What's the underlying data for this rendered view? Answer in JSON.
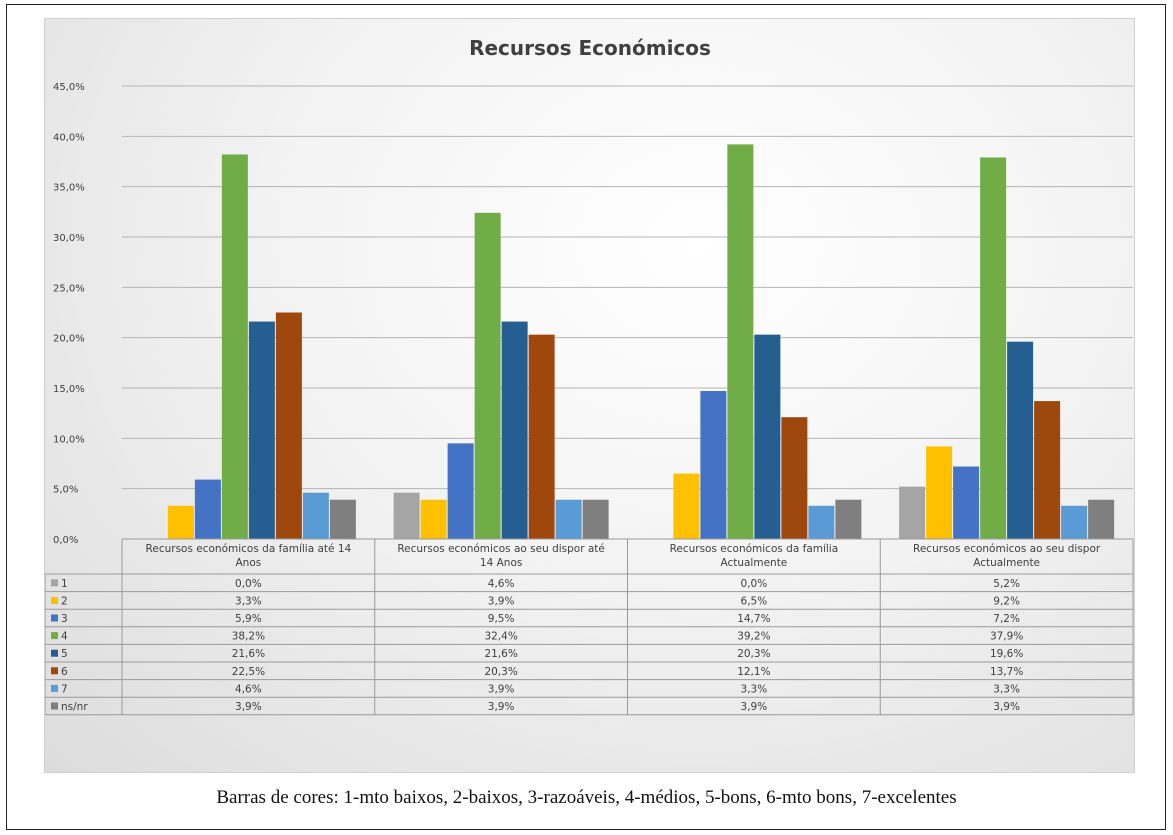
{
  "caption": "Barras de cores: 1-mto baixos, 2-baixos, 3-razoáveis, 4-médios, 5-bons, 6-mto bons, 7-excelentes",
  "chart_data": {
    "type": "bar",
    "title": "Recursos Económicos",
    "ylim": [
      0,
      45
    ],
    "yticks": [
      "0,0%",
      "5,0%",
      "10,0%",
      "15,0%",
      "20,0%",
      "25,0%",
      "30,0%",
      "35,0%",
      "40,0%",
      "45,0%"
    ],
    "grid": true,
    "legend": "data-table",
    "categories": [
      [
        "Recursos económicos da família até 14",
        "Anos"
      ],
      [
        "Recursos económicos ao seu dispor até",
        "14 Anos"
      ],
      [
        "Recursos económicos da família",
        "Actualmente"
      ],
      [
        "Recursos económicos ao seu dispor",
        "Actualmente"
      ]
    ],
    "series": [
      {
        "name": "1",
        "color": "#a5a5a5",
        "values": [
          0.0,
          4.6,
          0.0,
          5.2
        ],
        "labels": [
          "0,0%",
          "4,6%",
          "0,0%",
          "5,2%"
        ]
      },
      {
        "name": "2",
        "color": "#ffc000",
        "values": [
          3.3,
          3.9,
          6.5,
          9.2
        ],
        "labels": [
          "3,3%",
          "3,9%",
          "6,5%",
          "9,2%"
        ]
      },
      {
        "name": "3",
        "color": "#4472c4",
        "values": [
          5.9,
          9.5,
          14.7,
          7.2
        ],
        "labels": [
          "5,9%",
          "9,5%",
          "14,7%",
          "7,2%"
        ]
      },
      {
        "name": "4",
        "color": "#70ad47",
        "values": [
          38.2,
          32.4,
          39.2,
          37.9
        ],
        "labels": [
          "38,2%",
          "32,4%",
          "39,2%",
          "37,9%"
        ]
      },
      {
        "name": "5",
        "color": "#255e91",
        "values": [
          21.6,
          21.6,
          20.3,
          19.6
        ],
        "labels": [
          "21,6%",
          "21,6%",
          "20,3%",
          "19,6%"
        ]
      },
      {
        "name": "6",
        "color": "#9e480e",
        "values": [
          22.5,
          20.3,
          12.1,
          13.7
        ],
        "labels": [
          "22,5%",
          "20,3%",
          "12,1%",
          "13,7%"
        ]
      },
      {
        "name": "7",
        "color": "#5b9bd5",
        "values": [
          4.6,
          3.9,
          3.3,
          3.3
        ],
        "labels": [
          "4,6%",
          "3,9%",
          "3,3%",
          "3,3%"
        ]
      },
      {
        "name": "ns/nr",
        "color": "#7f7f7f",
        "values": [
          3.9,
          3.9,
          3.9,
          3.9
        ],
        "labels": [
          "3,9%",
          "3,9%",
          "3,9%",
          "3,9%"
        ]
      }
    ]
  }
}
